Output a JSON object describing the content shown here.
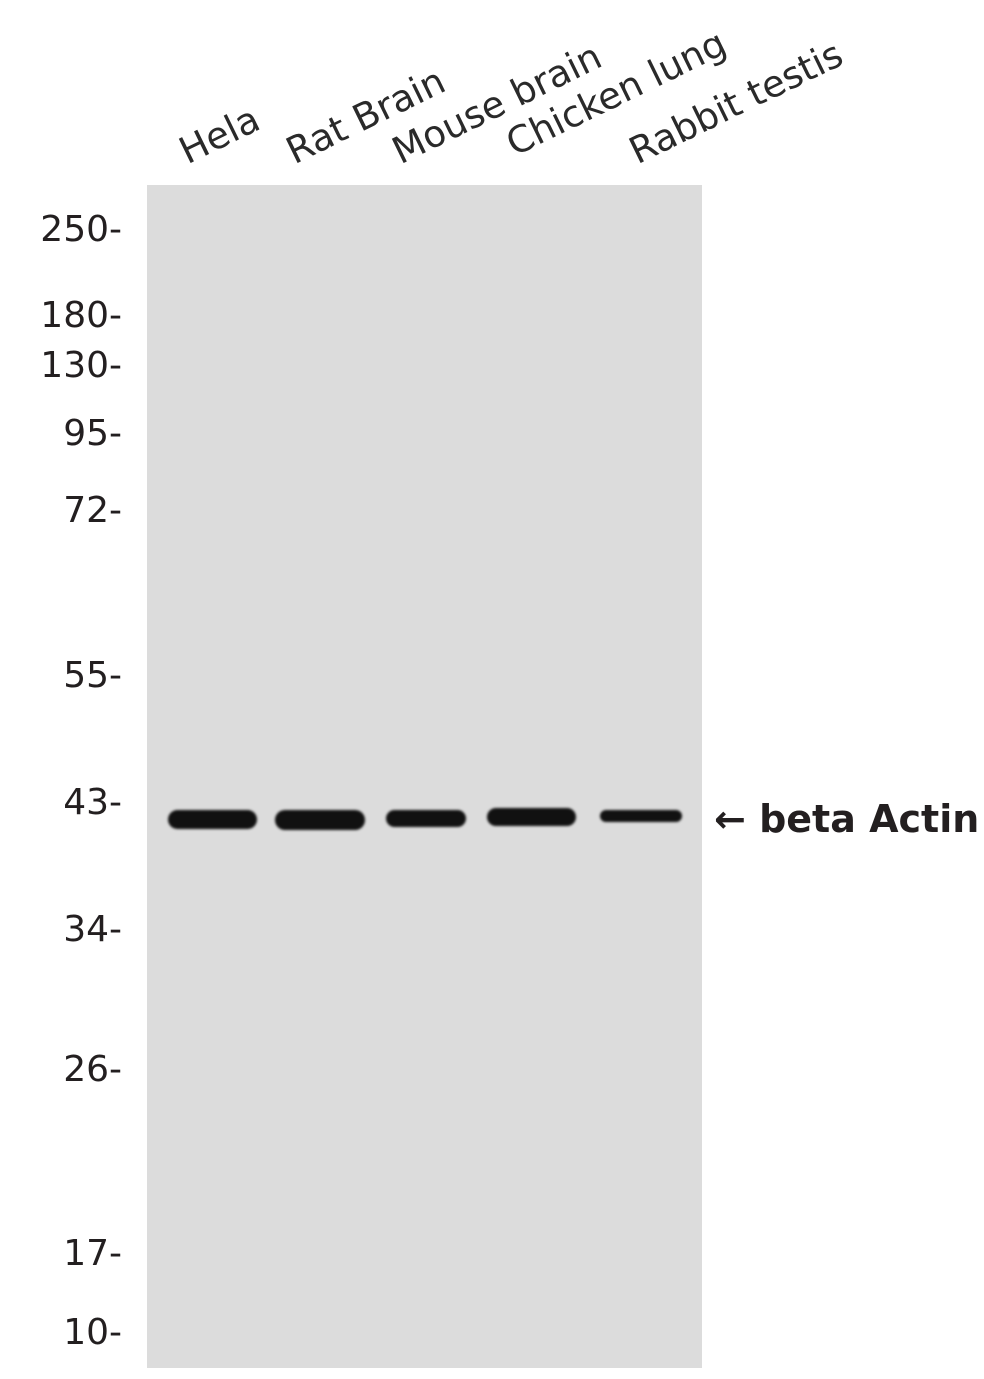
{
  "lanes": [
    "Hela",
    "Rat Brain",
    "Mouse brain",
    "Chicken lung",
    "Rabbit testis"
  ],
  "markers": [
    "250-",
    "180-",
    "130-",
    "95-",
    "72-",
    "55-",
    "43-",
    "34-",
    "26-",
    "17-",
    "10-"
  ],
  "target": {
    "arrow": "←",
    "label": "beta Actin"
  },
  "colors": {
    "membrane": "#dcdcdc",
    "band": "#111111",
    "text": "#231f20"
  }
}
